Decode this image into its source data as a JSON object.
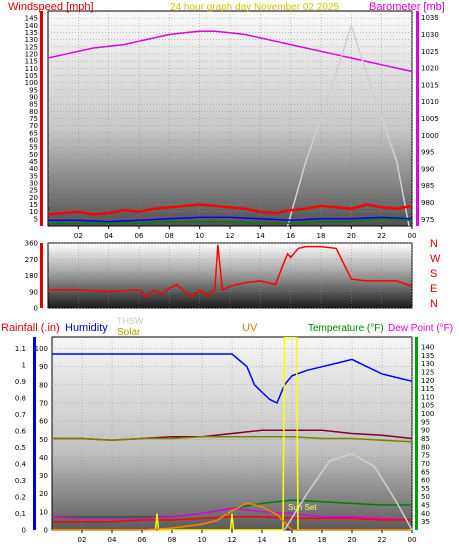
{
  "chart_data": [
    {
      "type": "line",
      "title": "24 hour graph day   November 02 2025",
      "left_label": "Windspeed [mph]",
      "right_label": "Barometer [mb]",
      "x_ticks": [
        "02",
        "04",
        "06",
        "08",
        "10",
        "12",
        "14",
        "16",
        "18",
        "20",
        "22",
        "00"
      ],
      "left_ticks": [
        "5",
        "10",
        "15",
        "20",
        "25",
        "30",
        "35",
        "40",
        "45",
        "50",
        "55",
        "60",
        "65",
        "70",
        "75",
        "80",
        "85",
        "90",
        "95",
        "100",
        "105",
        "110",
        "115",
        "120",
        "125",
        "130",
        "135",
        "140",
        "145"
      ],
      "left_ylim": [
        0,
        150
      ],
      "right_ticks": [
        "975",
        "980",
        "985",
        "990",
        "995",
        "1000",
        "1005",
        "1010",
        "1015",
        "1020",
        "1025",
        "1030",
        "1035"
      ],
      "right_ylim": [
        973,
        1037
      ],
      "series": [
        {
          "color": "#e000e0",
          "x": [
            0,
            1,
            2,
            3,
            4,
            5,
            6,
            7,
            8,
            9,
            10,
            11,
            12,
            13,
            14,
            15,
            16,
            17,
            18,
            19,
            20,
            21,
            22,
            23,
            24
          ],
          "values": [
            1023,
            1024,
            1025,
            1026,
            1026.5,
            1027,
            1028,
            1029,
            1030,
            1030.5,
            1031,
            1031,
            1030.5,
            1030,
            1029,
            1028,
            1027,
            1026,
            1025,
            1024,
            1023,
            1022,
            1021,
            1020,
            1019
          ]
        },
        {
          "color": "#d0d0d0",
          "x": [
            15.8,
            17,
            18.5,
            20,
            21.5,
            23,
            23.8
          ],
          "values": [
            0,
            45,
            90,
            140,
            90,
            45,
            0
          ]
        },
        {
          "color": "#ff0000",
          "x": [
            0,
            1,
            2,
            3,
            4,
            5,
            6,
            7,
            8,
            9,
            10,
            11,
            12,
            13,
            14,
            15,
            16,
            17,
            18,
            19,
            20,
            21,
            22,
            23,
            24
          ],
          "values": [
            8,
            9,
            10,
            8,
            9,
            11,
            10,
            12,
            13,
            14,
            15,
            14,
            13,
            12,
            10,
            9,
            11,
            12,
            14,
            13,
            12,
            15,
            13,
            12,
            14
          ]
        },
        {
          "color": "#0000ff",
          "x": [
            0,
            2,
            4,
            6,
            8,
            10,
            12,
            14,
            16,
            18,
            20,
            22,
            24
          ],
          "values": [
            4,
            4,
            3,
            4,
            5,
            6,
            6,
            5,
            4,
            5,
            5,
            6,
            5
          ]
        },
        {
          "color": "#008000",
          "x": [
            0,
            2,
            4,
            6,
            8,
            10,
            12,
            14,
            16,
            18,
            20,
            22,
            24
          ],
          "values": [
            2,
            2,
            2,
            2,
            3,
            3,
            3,
            2,
            2,
            3,
            3,
            5,
            4
          ]
        }
      ]
    },
    {
      "type": "line",
      "right_label": "N W S E N",
      "compass": [
        "N",
        "W",
        "S",
        "E",
        "N"
      ],
      "x_ticks": [
        "02",
        "04",
        "06",
        "08",
        "10",
        "12",
        "14",
        "16",
        "18",
        "20",
        "22",
        "00"
      ],
      "y_ticks": [
        "0",
        "90",
        "180",
        "270",
        "360"
      ],
      "ylim": [
        0,
        360
      ],
      "series": [
        {
          "color": "#ff0000",
          "x": [
            0,
            0.5,
            2,
            4,
            5,
            6,
            6.5,
            7,
            7.5,
            8,
            8.5,
            9,
            9.5,
            10,
            10.5,
            11,
            11.2,
            11.5,
            12,
            13,
            14,
            15,
            15.5,
            15.8,
            16,
            16.5,
            17,
            18,
            19,
            20,
            21,
            22,
            23,
            24
          ],
          "values": [
            100,
            100,
            100,
            90,
            95,
            100,
            60,
            100,
            80,
            110,
            130,
            90,
            60,
            100,
            70,
            100,
            350,
            100,
            120,
            140,
            150,
            130,
            240,
            300,
            280,
            330,
            340,
            340,
            330,
            160,
            150,
            150,
            150,
            120
          ]
        }
      ]
    },
    {
      "type": "line",
      "left_label": "Rainfall (.in)",
      "label_humidity": "Humidity",
      "label_thsw": "THSW",
      "label_solar": "Solar",
      "label_uv": "UV",
      "label_temperature": "Temperature (°F)",
      "right_label": "Dew Point (°F)",
      "annotation": "Sun Set",
      "x_ticks": [
        "02",
        "04",
        "06",
        "08",
        "10",
        "12",
        "14",
        "16",
        "18",
        "20",
        "22",
        "00"
      ],
      "left_ticks": [
        "0",
        "0.1",
        "0.2",
        "0.3",
        "0.4",
        "0.5",
        "0.6",
        "0.7",
        "0.8",
        "0.9",
        "1",
        "1.1"
      ],
      "left_ylim": [
        0,
        1.17
      ],
      "humidity_ticks": [
        "0",
        "10",
        "20",
        "30",
        "40",
        "50",
        "60",
        "70",
        "80",
        "90",
        "100"
      ],
      "humidity_ylim": [
        0,
        106.36
      ],
      "right_ticks": [
        "35",
        "40",
        "45",
        "50",
        "55",
        "60",
        "65",
        "70",
        "75",
        "80",
        "85",
        "90",
        "95",
        "100",
        "105",
        "110",
        "115",
        "120",
        "125",
        "130",
        "135",
        "140"
      ],
      "right_ylim": [
        30,
        146
      ],
      "series": [
        {
          "color": "#0000ff",
          "x": [
            0,
            2,
            4,
            6,
            8,
            10,
            11,
            12,
            13,
            13.5,
            14,
            14.5,
            15,
            15.5,
            16,
            17,
            18,
            19,
            20,
            21,
            22,
            23,
            24
          ],
          "values": [
            97,
            97,
            97,
            97,
            97,
            97,
            97,
            97,
            90,
            80,
            76,
            72,
            70,
            80,
            85,
            88,
            90,
            92,
            94,
            90,
            86,
            84,
            82
          ]
        },
        {
          "color": "#800030",
          "x": [
            0,
            2,
            4,
            6,
            8,
            10,
            12,
            14,
            16,
            18,
            20,
            22,
            24
          ],
          "values": [
            85,
            85,
            84,
            85,
            86,
            86,
            88,
            90,
            90,
            90,
            88,
            87,
            85
          ]
        },
        {
          "color": "#808000",
          "x": [
            0,
            2,
            4,
            6,
            8,
            10,
            12,
            14,
            16,
            18,
            20,
            22,
            24
          ],
          "values": [
            85,
            85,
            84,
            85,
            85,
            86,
            86,
            86,
            86,
            85,
            85,
            84,
            83
          ]
        },
        {
          "color": "#008000",
          "x": [
            0,
            2,
            4,
            6,
            8,
            10,
            12,
            14,
            16,
            18,
            20,
            22,
            24
          ],
          "values": [
            38,
            38,
            38,
            38,
            38,
            40,
            43,
            46,
            48,
            47,
            46,
            45,
            45
          ]
        },
        {
          "color": "#e000e0",
          "x": [
            0,
            2,
            4,
            6,
            8,
            10,
            12,
            14,
            16,
            18,
            20,
            22,
            24
          ],
          "values": [
            38,
            37,
            37,
            37,
            38,
            40,
            43,
            41,
            40,
            38,
            38,
            37,
            36
          ]
        },
        {
          "color": "#ff0000",
          "x": [
            0,
            2,
            4,
            6,
            8,
            10,
            12,
            14,
            16,
            18,
            20,
            22,
            24
          ],
          "values": [
            35,
            35,
            35,
            36,
            36,
            37,
            38,
            38,
            37,
            37,
            37,
            36,
            36
          ]
        },
        {
          "color": "#ffff00",
          "x": [
            0,
            6.9,
            7,
            7.1,
            11.9,
            12,
            12.1,
            15.4,
            15.5,
            16.3,
            16.4,
            24
          ],
          "values": [
            0,
            0,
            9,
            0,
            0,
            9,
            0,
            0,
            106,
            106,
            0,
            0
          ]
        },
        {
          "color": "#ff8000",
          "x": [
            0,
            6,
            8,
            10,
            11,
            12,
            13,
            14,
            15,
            15.5,
            16,
            24
          ],
          "values": [
            0,
            0,
            1,
            3,
            5,
            10,
            14,
            12,
            8,
            4,
            0,
            0
          ]
        },
        {
          "color": "#d0d0d0",
          "x": [
            15.5,
            17,
            18.5,
            20,
            21.5,
            23,
            24
          ],
          "values": [
            0,
            20,
            38,
            42,
            35,
            15,
            0
          ]
        }
      ]
    }
  ]
}
